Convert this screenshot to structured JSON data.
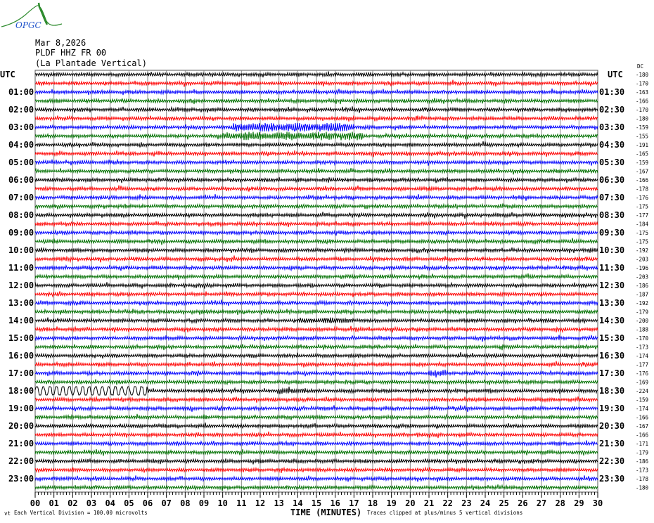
{
  "logo": {
    "text": "OPGC",
    "colors": {
      "mountain": "#2e8b2e",
      "text": "#2255cc"
    }
  },
  "header": {
    "date": "Mar 8,2026",
    "station": "PLDF HHZ FR 00",
    "location": "(La Plantade Vertical)"
  },
  "chart_data": {
    "type": "helicorder",
    "title": "PLDF HHZ FR 00",
    "xlabel": "TIME (MINUTES)",
    "xlim": [
      0,
      30
    ],
    "x_ticks": [
      "00",
      "01",
      "02",
      "03",
      "04",
      "05",
      "06",
      "07",
      "08",
      "09",
      "10",
      "11",
      "12",
      "13",
      "14",
      "15",
      "16",
      "17",
      "18",
      "19",
      "20",
      "21",
      "22",
      "23",
      "24",
      "25",
      "26",
      "27",
      "28",
      "29",
      "30"
    ],
    "grid": true,
    "trace_colors": [
      "#000000",
      "#ff0000",
      "#0000ff",
      "#007000"
    ],
    "left_axis_title": "UTC",
    "right_axis_title": "UTC",
    "dc_label": "DC",
    "left_labels": [
      "UTC",
      "01:00",
      "02:00",
      "03:00",
      "04:00",
      "05:00",
      "06:00",
      "07:00",
      "08:00",
      "09:00",
      "10:00",
      "11:00",
      "12:00",
      "13:00",
      "14:00",
      "15:00",
      "16:00",
      "17:00",
      "18:00",
      "19:00",
      "20:00",
      "21:00",
      "22:00",
      "23:00"
    ],
    "right_labels": [
      "UTC",
      "01:30",
      "02:30",
      "03:30",
      "04:30",
      "05:30",
      "06:30",
      "07:30",
      "08:30",
      "09:30",
      "10:30",
      "11:30",
      "12:30",
      "13:30",
      "14:30",
      "15:30",
      "16:30",
      "17:30",
      "18:30",
      "19:30",
      "20:30",
      "21:30",
      "22:30",
      "23:30"
    ],
    "dc_offsets": [
      -180,
      -170,
      -163,
      -166,
      -170,
      -180,
      -159,
      -155,
      -191,
      -165,
      -159,
      -167,
      -166,
      -178,
      -176,
      -175,
      -177,
      -184,
      -175,
      -175,
      -192,
      -203,
      -196,
      -203,
      -186,
      -187,
      -192,
      -179,
      -200,
      -188,
      -170,
      -173,
      -174,
      -177,
      -176,
      -169,
      -224,
      -159,
      -174,
      -166,
      -167,
      -166,
      -171,
      -179,
      -186,
      -173,
      -178,
      -180
    ],
    "vertical_division": "Each Vertical Division =  100.00 microvolts",
    "clip_note": "Traces clipped at plus/minus 5 vertical divisions"
  }
}
